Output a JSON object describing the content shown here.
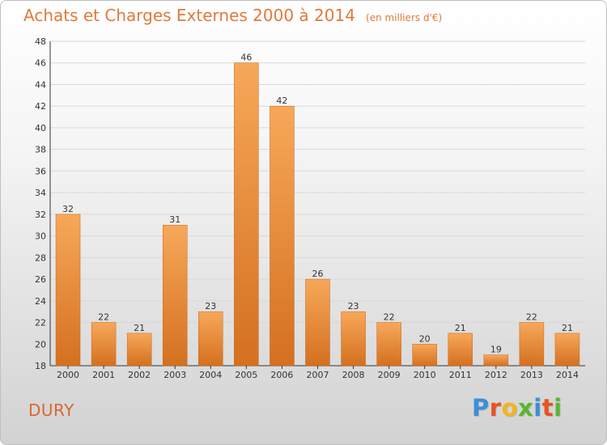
{
  "header": {
    "title": "Achats et Charges Externes 2000 à 2014",
    "subtitle": "(en milliers d'€)"
  },
  "commune": "DURY",
  "logo": {
    "letters": [
      {
        "char": "P",
        "color": "#3a8fd8"
      },
      {
        "char": "r",
        "color": "#e8531f"
      },
      {
        "char": "o",
        "color": "#f2b51f"
      },
      {
        "char": "x",
        "color": "#5bb531"
      },
      {
        "char": "i",
        "color": "#3a8fd8"
      },
      {
        "char": "t",
        "color": "#e8531f"
      },
      {
        "char": "i",
        "color": "#5bb531"
      }
    ]
  },
  "colors": {
    "bar_light": "#f7a85a",
    "bar_dark": "#d4701f",
    "grid": "#d9d9d9",
    "axis": "#333333"
  },
  "chart_data": {
    "type": "bar",
    "categories": [
      "2000",
      "2001",
      "2002",
      "2003",
      "2004",
      "2005",
      "2006",
      "2007",
      "2008",
      "2009",
      "2010",
      "2011",
      "2012",
      "2013",
      "2014"
    ],
    "values": [
      32,
      22,
      21,
      31,
      23,
      46,
      42,
      26,
      23,
      22,
      20,
      21,
      19,
      22,
      21
    ],
    "title": "Achats et Charges Externes 2000 à 2014",
    "subtitle": "(en milliers d'€)",
    "ylim": [
      18,
      48
    ],
    "yticks": [
      18,
      20,
      22,
      24,
      26,
      28,
      30,
      32,
      34,
      36,
      38,
      40,
      42,
      44,
      46,
      48
    ],
    "grid": true,
    "data_labels": true
  }
}
